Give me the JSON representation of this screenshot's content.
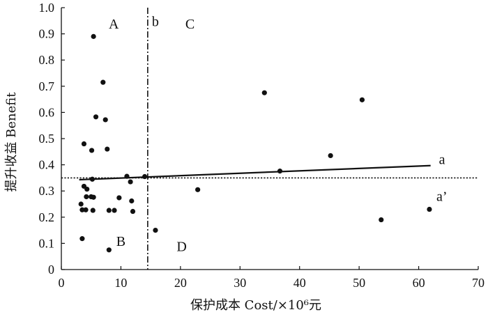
{
  "chart_data": {
    "type": "scatter",
    "title": "",
    "xlabel": "保护成本 Cost/×10⁶元",
    "ylabel": "提升收益 Benefit",
    "xlim": [
      0,
      70
    ],
    "ylim": [
      0,
      1.0
    ],
    "x_ticks": [
      "0",
      "10",
      "20",
      "30",
      "40",
      "50",
      "60",
      "70"
    ],
    "y_ticks": [
      "0",
      "0.1",
      "0.2",
      "0.3",
      "0.4",
      "0.5",
      "0.6",
      "0.7",
      "0.8",
      "0.9",
      "1.0"
    ],
    "grid": false,
    "points": [
      {
        "x": 5.4,
        "y": 0.89
      },
      {
        "x": 7.0,
        "y": 0.715
      },
      {
        "x": 5.8,
        "y": 0.583
      },
      {
        "x": 7.4,
        "y": 0.572
      },
      {
        "x": 3.8,
        "y": 0.48
      },
      {
        "x": 7.7,
        "y": 0.46
      },
      {
        "x": 5.1,
        "y": 0.455
      },
      {
        "x": 11.0,
        "y": 0.356
      },
      {
        "x": 14.0,
        "y": 0.355
      },
      {
        "x": 5.2,
        "y": 0.345
      },
      {
        "x": 11.6,
        "y": 0.335
      },
      {
        "x": 3.8,
        "y": 0.318
      },
      {
        "x": 4.3,
        "y": 0.307
      },
      {
        "x": 4.2,
        "y": 0.278
      },
      {
        "x": 5.0,
        "y": 0.278
      },
      {
        "x": 5.4,
        "y": 0.276
      },
      {
        "x": 9.7,
        "y": 0.274
      },
      {
        "x": 11.8,
        "y": 0.262
      },
      {
        "x": 3.3,
        "y": 0.25
      },
      {
        "x": 3.5,
        "y": 0.228
      },
      {
        "x": 4.1,
        "y": 0.228
      },
      {
        "x": 5.3,
        "y": 0.226
      },
      {
        "x": 8.0,
        "y": 0.226
      },
      {
        "x": 8.9,
        "y": 0.226
      },
      {
        "x": 12.0,
        "y": 0.222
      },
      {
        "x": 3.5,
        "y": 0.118
      },
      {
        "x": 8.0,
        "y": 0.075
      },
      {
        "x": 15.8,
        "y": 0.15
      },
      {
        "x": 22.9,
        "y": 0.305
      },
      {
        "x": 34.1,
        "y": 0.675
      },
      {
        "x": 36.7,
        "y": 0.376
      },
      {
        "x": 45.2,
        "y": 0.435
      },
      {
        "x": 50.5,
        "y": 0.648
      },
      {
        "x": 53.7,
        "y": 0.19
      },
      {
        "x": 61.8,
        "y": 0.23
      }
    ],
    "trend_line": {
      "x": [
        3.0,
        62.0
      ],
      "y": [
        0.343,
        0.397
      ],
      "label": "a"
    },
    "horizontal_reference": {
      "y": 0.35
    },
    "vertical_reference": {
      "x": 14.5,
      "label": "b"
    },
    "point_label": {
      "text": "a’",
      "x": 61.8,
      "y": 0.23
    },
    "quadrant_labels": [
      {
        "text": "A",
        "x": 8.8,
        "y": 0.92
      },
      {
        "text": "C",
        "x": 21.6,
        "y": 0.92
      },
      {
        "text": "B",
        "x": 10.0,
        "y": 0.09
      },
      {
        "text": "D",
        "x": 20.2,
        "y": 0.07
      }
    ]
  }
}
